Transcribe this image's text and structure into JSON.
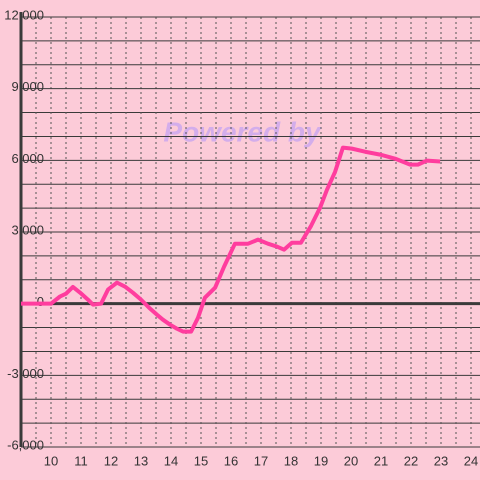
{
  "chart_data": {
    "type": "line",
    "watermark": "Powered by",
    "x": [
      9.0,
      10.0,
      10.3,
      10.5,
      10.73,
      10.97,
      11.23,
      11.4,
      11.67,
      11.9,
      12.2,
      12.47,
      12.73,
      13.0,
      13.27,
      13.53,
      13.73,
      13.97,
      14.2,
      14.4,
      14.67,
      14.9,
      15.13,
      15.47,
      15.77,
      16.13,
      16.57,
      16.9,
      17.23,
      17.53,
      17.77,
      18.03,
      18.33,
      18.67,
      18.97,
      19.2,
      19.47,
      19.73,
      20.03,
      20.47,
      20.97,
      21.47,
      21.97,
      22.23,
      22.53,
      22.97
    ],
    "series": [
      {
        "color": "#ff3d9e",
        "values": [
          0,
          0,
          300,
          420,
          700,
          460,
          170,
          -40,
          0,
          590,
          880,
          710,
          460,
          170,
          -170,
          -460,
          -670,
          -880,
          -1050,
          -1170,
          -1170,
          -590,
          250,
          670,
          1550,
          2510,
          2510,
          2680,
          2510,
          2390,
          2260,
          2550,
          2550,
          3260,
          4020,
          4770,
          5520,
          6530,
          6490,
          6360,
          6240,
          6070,
          5820,
          5820,
          5990,
          5950
        ]
      }
    ],
    "xlim": [
      9.0,
      24.3
    ],
    "xticks": [
      10,
      11,
      12,
      13,
      14,
      15,
      16,
      17,
      18,
      19,
      20,
      21,
      22,
      23,
      24
    ],
    "xminorticks": [
      9.5,
      10.5,
      11.5,
      12.5,
      13.5,
      14.5,
      15.5,
      16.5,
      17.5,
      18.5,
      19.5,
      20.5,
      21.5,
      22.5,
      23.5
    ],
    "ylim": [
      -6000,
      12000
    ],
    "yticks": [
      {
        "value": -6000,
        "label": "-6,000"
      },
      {
        "value": -3000,
        "label": "-3,000"
      },
      0,
      {
        "value": 3000,
        "label": "3,000"
      },
      {
        "value": 6000,
        "label": "6,000"
      },
      {
        "value": 9000,
        "label": "9,000"
      },
      {
        "value": 12000,
        "label": "12,000"
      }
    ],
    "yminorticks": [
      -5000,
      -4000,
      -2000,
      -1000,
      1000,
      2000,
      4000,
      5000,
      7000,
      8000,
      10000,
      11000
    ],
    "grid": true
  }
}
